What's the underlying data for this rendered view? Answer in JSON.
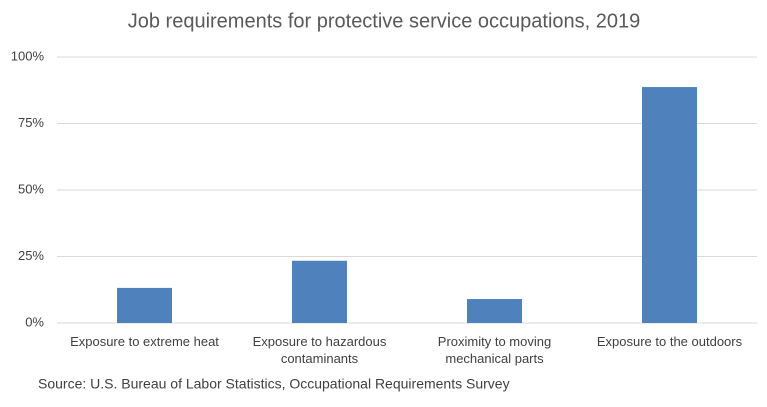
{
  "chart_data": {
    "type": "bar",
    "title": "Job requirements for protective service occupations, 2019",
    "categories": [
      "Exposure to extreme heat",
      "Exposure to hazardous contaminants",
      "Proximity to moving mechanical parts",
      "Exposure to the outdoors"
    ],
    "values": [
      13.2,
      23.4,
      9.0,
      88.7
    ],
    "color": "#4f81bd",
    "ylim": [
      0,
      100
    ],
    "yticks": [
      {
        "value": 0,
        "label": "0%"
      },
      {
        "value": 25,
        "label": "25%"
      },
      {
        "value": 50,
        "label": "50%"
      },
      {
        "value": 75,
        "label": "75%"
      },
      {
        "value": 100,
        "label": "100%"
      }
    ],
    "grid": true,
    "source": "Source: U.S. Bureau of Labor Statistics, Occupational Requirements Survey"
  }
}
